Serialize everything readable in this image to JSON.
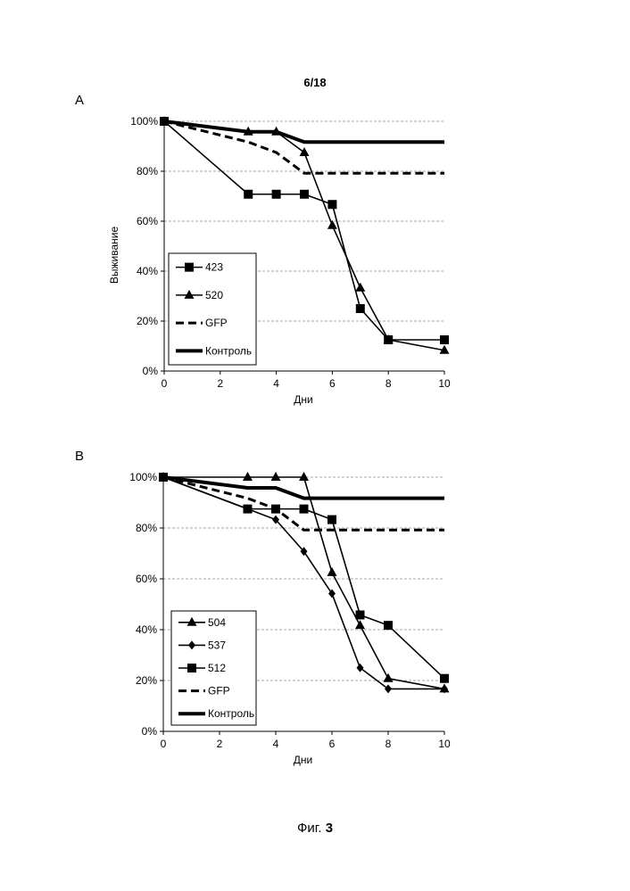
{
  "page": {
    "number": "6/18"
  },
  "figure": {
    "caption_prefix": "Фиг.",
    "caption_number": "3"
  },
  "panels": [
    {
      "label": "A"
    },
    {
      "label": "B"
    }
  ],
  "chart_data": [
    {
      "type": "line",
      "panel": "A",
      "xlabel": "Дни",
      "ylabel": "Выживание",
      "xlim": [
        0,
        10
      ],
      "ylim": [
        0,
        1
      ],
      "xticks": [
        0,
        2,
        4,
        6,
        8,
        10
      ],
      "yticks": [
        0,
        0.2,
        0.4,
        0.6,
        0.8,
        1.0
      ],
      "ytick_labels": [
        "0%",
        "20%",
        "40%",
        "60%",
        "80%",
        "100%"
      ],
      "grid": "horizontal-dashed",
      "legend_position": "bottom-left",
      "series": [
        {
          "name": "423",
          "marker": "square",
          "dash": "solid",
          "x": [
            0,
            3,
            4,
            5,
            6,
            7,
            8,
            10
          ],
          "y": [
            1.0,
            0.708,
            0.708,
            0.708,
            0.667,
            0.25,
            0.125,
            0.125
          ]
        },
        {
          "name": "520",
          "marker": "triangle",
          "dash": "solid",
          "x": [
            0,
            3,
            4,
            5,
            6,
            7,
            8,
            10
          ],
          "y": [
            1.0,
            0.958,
            0.958,
            0.875,
            0.583,
            0.333,
            0.125,
            0.083
          ]
        },
        {
          "name": "GFP",
          "marker": "none",
          "dash": "dashed",
          "x": [
            0,
            3,
            4,
            5,
            6,
            7,
            8,
            10
          ],
          "y": [
            1.0,
            0.917,
            0.875,
            0.792,
            0.792,
            0.792,
            0.792,
            0.792
          ]
        },
        {
          "name": "Контроль",
          "marker": "none",
          "dash": "thick",
          "x": [
            0,
            3,
            4,
            5,
            6,
            7,
            8,
            10
          ],
          "y": [
            1.0,
            0.958,
            0.958,
            0.917,
            0.917,
            0.917,
            0.917,
            0.917
          ]
        }
      ]
    },
    {
      "type": "line",
      "panel": "B",
      "xlabel": "Дни",
      "ylabel": "",
      "xlim": [
        0,
        10
      ],
      "ylim": [
        0,
        1
      ],
      "xticks": [
        0,
        2,
        4,
        6,
        8,
        10
      ],
      "yticks": [
        0,
        0.2,
        0.4,
        0.6,
        0.8,
        1.0
      ],
      "ytick_labels": [
        "0%",
        "20%",
        "40%",
        "60%",
        "80%",
        "100%"
      ],
      "grid": "horizontal-dashed",
      "legend_position": "bottom-left",
      "series": [
        {
          "name": "504",
          "marker": "triangle",
          "dash": "solid",
          "x": [
            0,
            3,
            4,
            5,
            6,
            7,
            8,
            10
          ],
          "y": [
            1.0,
            1.0,
            1.0,
            1.0,
            0.625,
            0.417,
            0.208,
            0.167
          ]
        },
        {
          "name": "537",
          "marker": "diamond",
          "dash": "solid",
          "x": [
            0,
            3,
            4,
            5,
            6,
            7,
            8,
            10
          ],
          "y": [
            1.0,
            0.875,
            0.833,
            0.708,
            0.542,
            0.25,
            0.167,
            0.167
          ]
        },
        {
          "name": "512",
          "marker": "square",
          "dash": "solid",
          "x": [
            0,
            3,
            4,
            5,
            6,
            7,
            8,
            10
          ],
          "y": [
            1.0,
            0.875,
            0.875,
            0.875,
            0.833,
            0.458,
            0.417,
            0.208
          ]
        },
        {
          "name": "GFP",
          "marker": "none",
          "dash": "dashed",
          "x": [
            0,
            3,
            4,
            5,
            6,
            7,
            8,
            10
          ],
          "y": [
            1.0,
            0.917,
            0.875,
            0.792,
            0.792,
            0.792,
            0.792,
            0.792
          ]
        },
        {
          "name": "Контроль",
          "marker": "none",
          "dash": "thick",
          "x": [
            0,
            3,
            4,
            5,
            6,
            7,
            8,
            10
          ],
          "y": [
            1.0,
            0.958,
            0.958,
            0.917,
            0.917,
            0.917,
            0.917,
            0.917
          ]
        }
      ]
    }
  ]
}
